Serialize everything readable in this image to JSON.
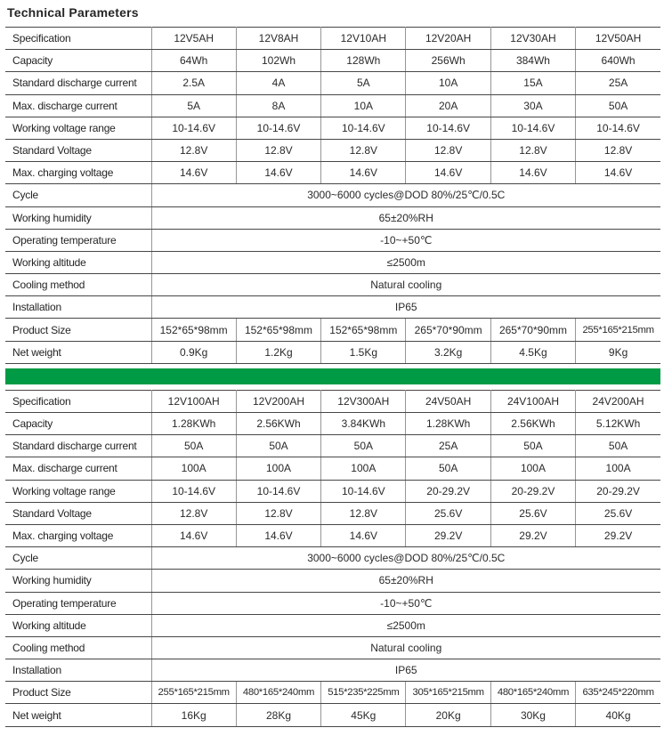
{
  "page_title": "Technical Parameters",
  "colors": {
    "divider_green": "#009B44",
    "horizontal_rule": "#474747",
    "vertical_rule": "#979797"
  },
  "tables": [
    {
      "name": "technical-parameters-small-models",
      "rows": [
        {
          "label": "Specification",
          "values": [
            "12V5AH",
            "12V8AH",
            "12V10AH",
            "12V20AH",
            "12V30AH",
            "12V50AH"
          ]
        },
        {
          "label": "Capacity",
          "values": [
            "64Wh",
            "102Wh",
            "128Wh",
            "256Wh",
            "384Wh",
            "640Wh"
          ]
        },
        {
          "label": "Standard discharge current",
          "values": [
            "2.5A",
            "4A",
            "5A",
            "10A",
            "15A",
            "25A"
          ]
        },
        {
          "label": "Max. discharge current",
          "values": [
            "5A",
            "8A",
            "10A",
            "20A",
            "30A",
            "50A"
          ]
        },
        {
          "label": "Working voltage range",
          "values": [
            "10-14.6V",
            "10-14.6V",
            "10-14.6V",
            "10-14.6V",
            "10-14.6V",
            "10-14.6V"
          ]
        },
        {
          "label": "Standard Voltage",
          "values": [
            "12.8V",
            "12.8V",
            "12.8V",
            "12.8V",
            "12.8V",
            "12.8V"
          ]
        },
        {
          "label": "Max. charging voltage",
          "values": [
            "14.6V",
            "14.6V",
            "14.6V",
            "14.6V",
            "14.6V",
            "14.6V"
          ]
        },
        {
          "label": "Cycle",
          "merged": "3000~6000 cycles@DOD 80%/25℃/0.5C"
        },
        {
          "label": "Working humidity",
          "merged": "65±20%RH"
        },
        {
          "label": "Operating temperature",
          "merged": "-10~+50℃"
        },
        {
          "label": "Working altitude",
          "merged": "≤2500m"
        },
        {
          "label": "Cooling method",
          "merged": "Natural cooling"
        },
        {
          "label": "Installation",
          "merged": "IP65"
        },
        {
          "label": "Product Size",
          "values": [
            "152*65*98mm",
            "152*65*98mm",
            "152*65*98mm",
            "265*70*90mm",
            "265*70*90mm",
            "255*165*215mm"
          ]
        },
        {
          "label": "Net weight",
          "values": [
            "0.9Kg",
            "1.2Kg",
            "1.5Kg",
            "3.2Kg",
            "4.5Kg",
            "9Kg"
          ]
        }
      ]
    },
    {
      "name": "technical-parameters-large-models",
      "rows": [
        {
          "label": "Specification",
          "values": [
            "12V100AH",
            "12V200AH",
            "12V300AH",
            "24V50AH",
            "24V100AH",
            "24V200AH"
          ]
        },
        {
          "label": "Capacity",
          "values": [
            "1.28KWh",
            "2.56KWh",
            "3.84KWh",
            "1.28KWh",
            "2.56KWh",
            "5.12KWh"
          ]
        },
        {
          "label": "Standard discharge current",
          "values": [
            "50A",
            "50A",
            "50A",
            "25A",
            "50A",
            "50A"
          ]
        },
        {
          "label": "Max. discharge current",
          "values": [
            "100A",
            "100A",
            "100A",
            "50A",
            "100A",
            "100A"
          ]
        },
        {
          "label": "Working voltage range",
          "values": [
            "10-14.6V",
            "10-14.6V",
            "10-14.6V",
            "20-29.2V",
            "20-29.2V",
            "20-29.2V"
          ]
        },
        {
          "label": "Standard Voltage",
          "values": [
            "12.8V",
            "12.8V",
            "12.8V",
            "25.6V",
            "25.6V",
            "25.6V"
          ]
        },
        {
          "label": "Max. charging voltage",
          "values": [
            "14.6V",
            "14.6V",
            "14.6V",
            "29.2V",
            "29.2V",
            "29.2V"
          ]
        },
        {
          "label": "Cycle",
          "merged": "3000~6000 cycles@DOD 80%/25℃/0.5C"
        },
        {
          "label": "Working humidity",
          "merged": "65±20%RH"
        },
        {
          "label": "Operating temperature",
          "merged": "-10~+50℃"
        },
        {
          "label": "Working altitude",
          "merged": "≤2500m"
        },
        {
          "label": "Cooling method",
          "merged": "Natural cooling"
        },
        {
          "label": "Installation",
          "merged": "IP65"
        },
        {
          "label": "Product Size",
          "values": [
            "255*165*215mm",
            "480*165*240mm",
            "515*235*225mm",
            "305*165*215mm",
            "480*165*240mm",
            "635*245*220mm"
          ]
        },
        {
          "label": "Net weight",
          "values": [
            "16Kg",
            "28Kg",
            "45Kg",
            "20Kg",
            "30Kg",
            "40Kg"
          ]
        }
      ]
    }
  ]
}
